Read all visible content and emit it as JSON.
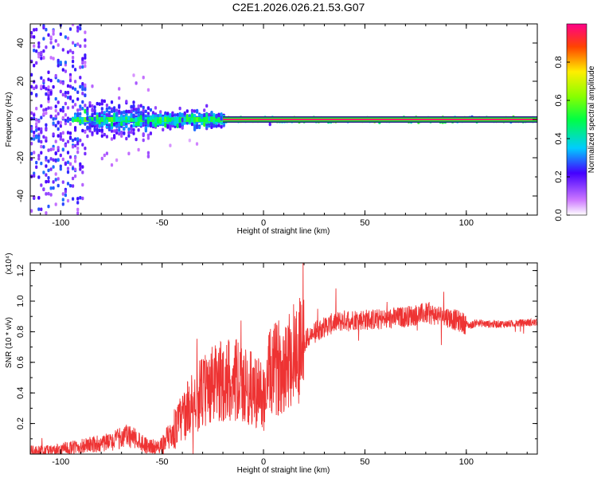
{
  "title": "C2E1.2026.026.21.53.G07",
  "chart_data": [
    {
      "type": "heatmap",
      "xlabel": "Height of straight line (km)",
      "ylabel": "Frequency (Hz)",
      "xlim": [
        -115,
        135
      ],
      "ylim": [
        -50,
        50
      ],
      "xticks": [
        -100,
        -50,
        0,
        50,
        100
      ],
      "yticks": [
        -40,
        -20,
        0,
        20,
        40
      ],
      "colorbar": {
        "label": "Normalized spectral amplitude",
        "range": [
          0.0,
          1.0
        ],
        "ticks": [
          0.0,
          0.2,
          0.4,
          0.6,
          0.8
        ]
      }
    },
    {
      "type": "line",
      "xlabel": "Height of straight line (km)",
      "ylabel": "SNR (10 * v/v)",
      "scale_label": "(x10⁴)",
      "xlim": [
        -115,
        135
      ],
      "ylim": [
        0,
        1.25
      ],
      "xticks": [
        -100,
        -50,
        0,
        50,
        100
      ],
      "yticks": [
        0.2,
        0.4,
        0.6,
        0.8,
        1.0,
        1.2
      ],
      "series": [
        {
          "name": "SNR",
          "color": "#ee3333",
          "x": [
            -115,
            -105,
            -95,
            -85,
            -75,
            -68,
            -62,
            -58,
            -52,
            -46,
            -42,
            -38,
            -35,
            -32,
            -28,
            -25,
            -20,
            -15,
            -10,
            -5,
            -2,
            0,
            3,
            8,
            12,
            18,
            22,
            28,
            35,
            42,
            50,
            60,
            70,
            80,
            90,
            98,
            102,
            105,
            110,
            120,
            130,
            135
          ],
          "y": [
            0.02,
            0.02,
            0.04,
            0.06,
            0.08,
            0.12,
            0.1,
            0.06,
            0.04,
            0.1,
            0.2,
            0.28,
            0.34,
            0.38,
            0.42,
            0.45,
            0.48,
            0.5,
            0.44,
            0.42,
            0.4,
            0.36,
            0.52,
            0.58,
            0.62,
            0.7,
            0.76,
            0.82,
            0.86,
            0.88,
            0.88,
            0.88,
            0.9,
            0.92,
            0.9,
            0.86,
            0.84,
            0.86,
            0.85,
            0.85,
            0.86,
            0.86
          ]
        }
      ]
    }
  ]
}
